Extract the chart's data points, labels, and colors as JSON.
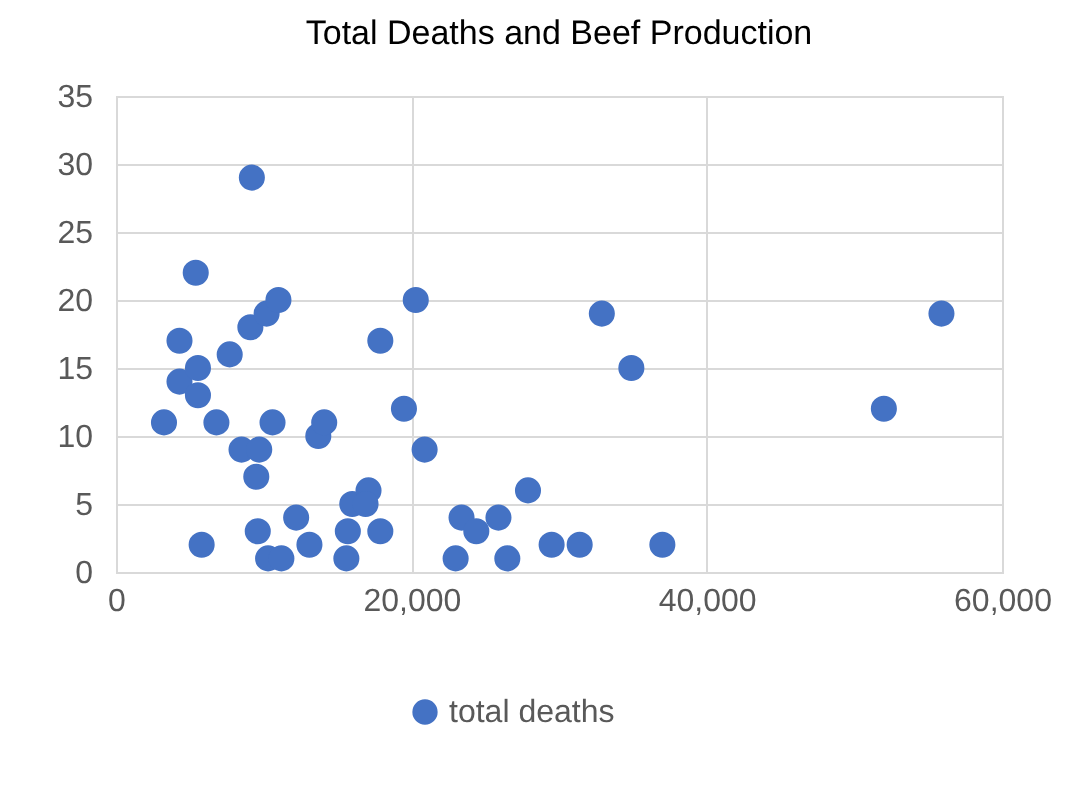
{
  "chart_data": {
    "type": "scatter",
    "title": "Total Deaths and Beef Production",
    "x": [
      3250,
      4300,
      4300,
      5400,
      5550,
      5550,
      5800,
      6800,
      7700,
      8500,
      9100,
      9200,
      9500,
      9600,
      9700,
      10200,
      10300,
      10600,
      11000,
      11200,
      12200,
      13100,
      13700,
      14100,
      15600,
      15700,
      16000,
      17100,
      16900,
      17900,
      17900,
      19500,
      20300,
      20900,
      23000,
      23400,
      24400,
      25900,
      26500,
      27900,
      29500,
      31400,
      32900,
      34900,
      37000,
      52000,
      55900
    ],
    "series": [
      {
        "name": "total deaths",
        "color": "#4472c4",
        "values": [
          11,
          17,
          14,
          22,
          15,
          13,
          2,
          11,
          16,
          9,
          18,
          29,
          7,
          3,
          9,
          19,
          1,
          11,
          20,
          1,
          4,
          2,
          10,
          11,
          1,
          3,
          5,
          6,
          5,
          3,
          17,
          12,
          20,
          9,
          1,
          4,
          3,
          4,
          1,
          6,
          2,
          2,
          19,
          15,
          2,
          12,
          19
        ]
      }
    ],
    "xlim": [
      0,
      60000
    ],
    "xticks": [
      {
        "value": 0,
        "label": "0"
      },
      {
        "value": 20000,
        "label": "20,000"
      },
      {
        "value": 40000,
        "label": "40,000"
      },
      {
        "value": 60000,
        "label": "60,000"
      }
    ],
    "ylim": [
      0,
      35
    ],
    "yticks": [
      0,
      5,
      10,
      15,
      20,
      25,
      30,
      35
    ],
    "grid": true,
    "legend": "bottom",
    "marker": "circle"
  }
}
